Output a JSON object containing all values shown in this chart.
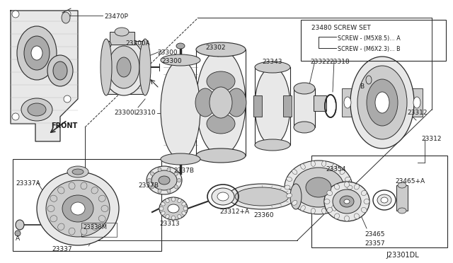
{
  "bg": "#ffffff",
  "line": "#2a2a2a",
  "gray1": "#e8e8e8",
  "gray2": "#cccccc",
  "gray3": "#aaaaaa",
  "gray4": "#888888",
  "diagram_id": "J23301DL",
  "screw_set": "23480 SCREW SET",
  "screw_a": "SCREW - (M5X8.5)... A",
  "screw_b": "SCREW - (M6X2.3)... B",
  "front": "FRONT",
  "figw": 6.4,
  "figh": 3.72,
  "dpi": 100
}
